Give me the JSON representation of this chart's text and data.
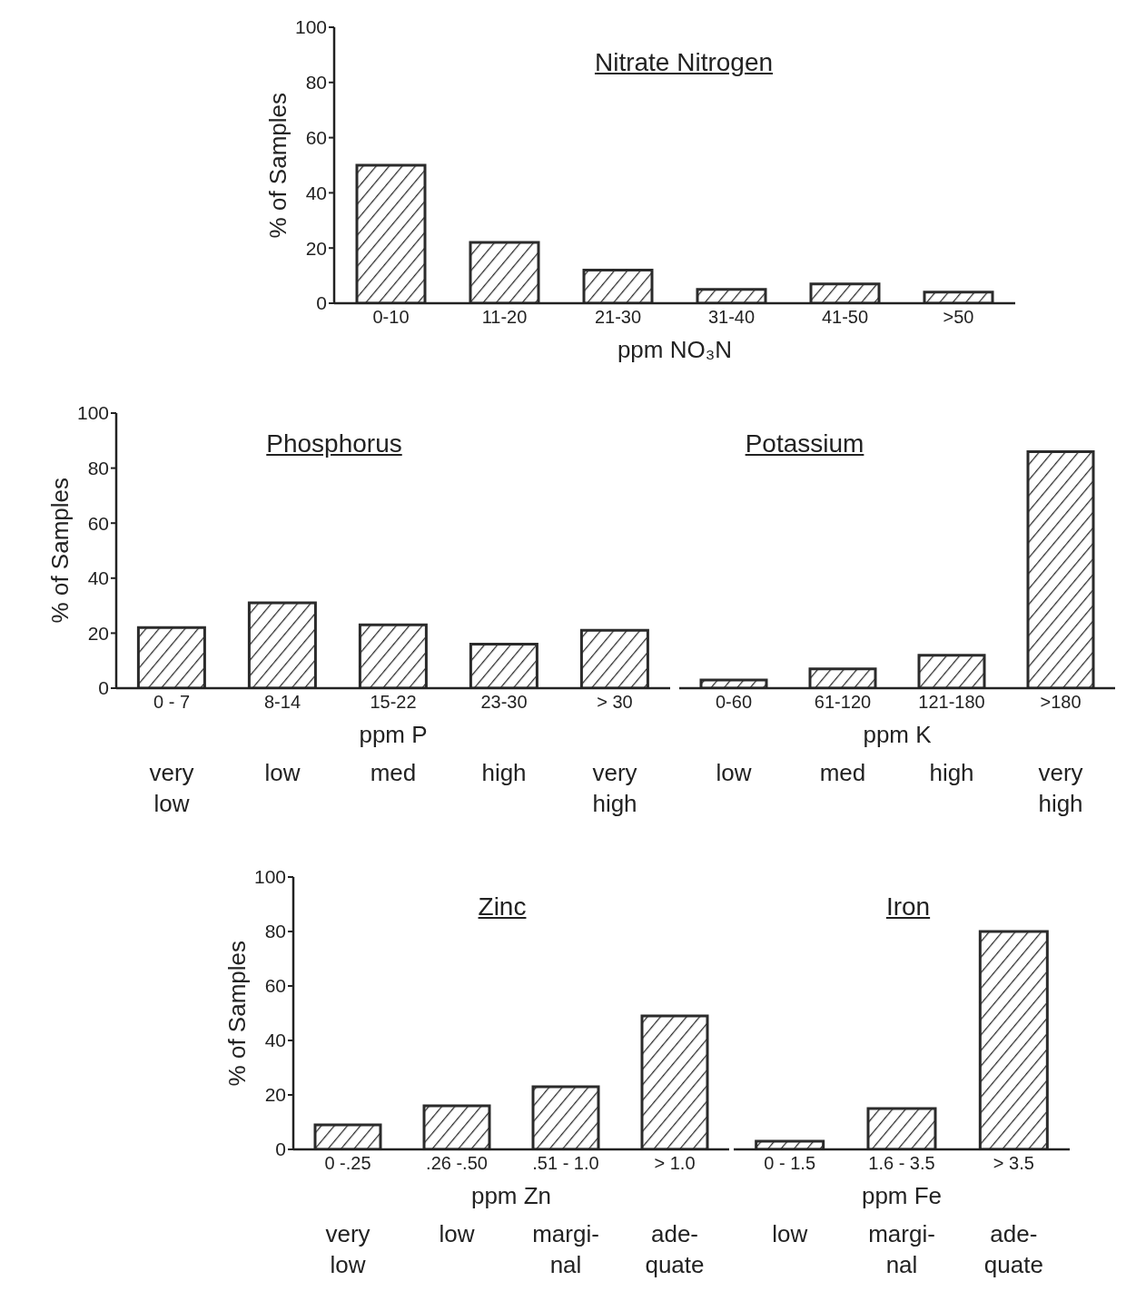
{
  "chart_data": [
    {
      "type": "bar",
      "title": "Nitrate Nitrogen",
      "xlabel": "ppm NO₃N",
      "ylabel": "% of Samples",
      "categories": [
        "0-10",
        "11-20",
        "21-30",
        "31-40",
        "41-50",
        ">50"
      ],
      "values": [
        50,
        22,
        12,
        5,
        7,
        4
      ],
      "color": "#2b2b2b",
      "ylim": [
        0,
        100
      ],
      "yticks": [
        0,
        20,
        40,
        60,
        80,
        100
      ]
    },
    {
      "type": "bar",
      "title": "Phosphorus",
      "xlabel": "ppm P",
      "ylabel": "% of Samples",
      "categories": [
        "0 - 7",
        "8-14",
        "15-22",
        "23-30",
        "> 30"
      ],
      "values": [
        22,
        31,
        23,
        16,
        21
      ],
      "color": "#2b2b2b",
      "ylim": [
        0,
        100
      ],
      "yticks": [
        0,
        20,
        40,
        60,
        80,
        100
      ],
      "annotations": [
        "very\nlow",
        "low",
        "med",
        "high",
        "very\nhigh"
      ]
    },
    {
      "type": "bar",
      "title": "Potassium",
      "xlabel": "ppm K",
      "categories": [
        "0-60",
        "61-120",
        "121-180",
        ">180"
      ],
      "values": [
        3,
        7,
        12,
        86
      ],
      "color": "#2b2b2b",
      "ylim": [
        0,
        100
      ],
      "yticks": [
        0,
        20,
        40,
        60,
        80,
        100
      ],
      "tick_labels": "x",
      "annotations": [
        "low",
        "med",
        "high",
        "very\nhigh"
      ]
    },
    {
      "type": "bar",
      "title": "Zinc",
      "xlabel": "ppm Zn",
      "ylabel": "% of Samples",
      "categories": [
        "0 -.25",
        ".26 -.50",
        ".51 - 1.0",
        "> 1.0"
      ],
      "values": [
        9,
        16,
        23,
        49
      ],
      "color": "#2b2b2b",
      "ylim": [
        0,
        100
      ],
      "yticks": [
        0,
        20,
        40,
        60,
        80,
        100
      ],
      "annotations": [
        "very\nlow",
        "low",
        "margi-\nnal",
        "ade-\nquate"
      ]
    },
    {
      "type": "bar",
      "title": "Iron",
      "xlabel": "ppm Fe",
      "categories": [
        "0 - 1.5",
        "1.6 - 3.5",
        "> 3.5"
      ],
      "values": [
        3,
        15,
        80
      ],
      "color": "#2b2b2b",
      "ylim": [
        0,
        100
      ],
      "yticks": [
        0,
        20,
        40,
        60,
        80,
        100
      ],
      "tick_labels": "x",
      "annotations": [
        "low",
        "margi-\nnal",
        "ade-\nquate"
      ]
    }
  ]
}
